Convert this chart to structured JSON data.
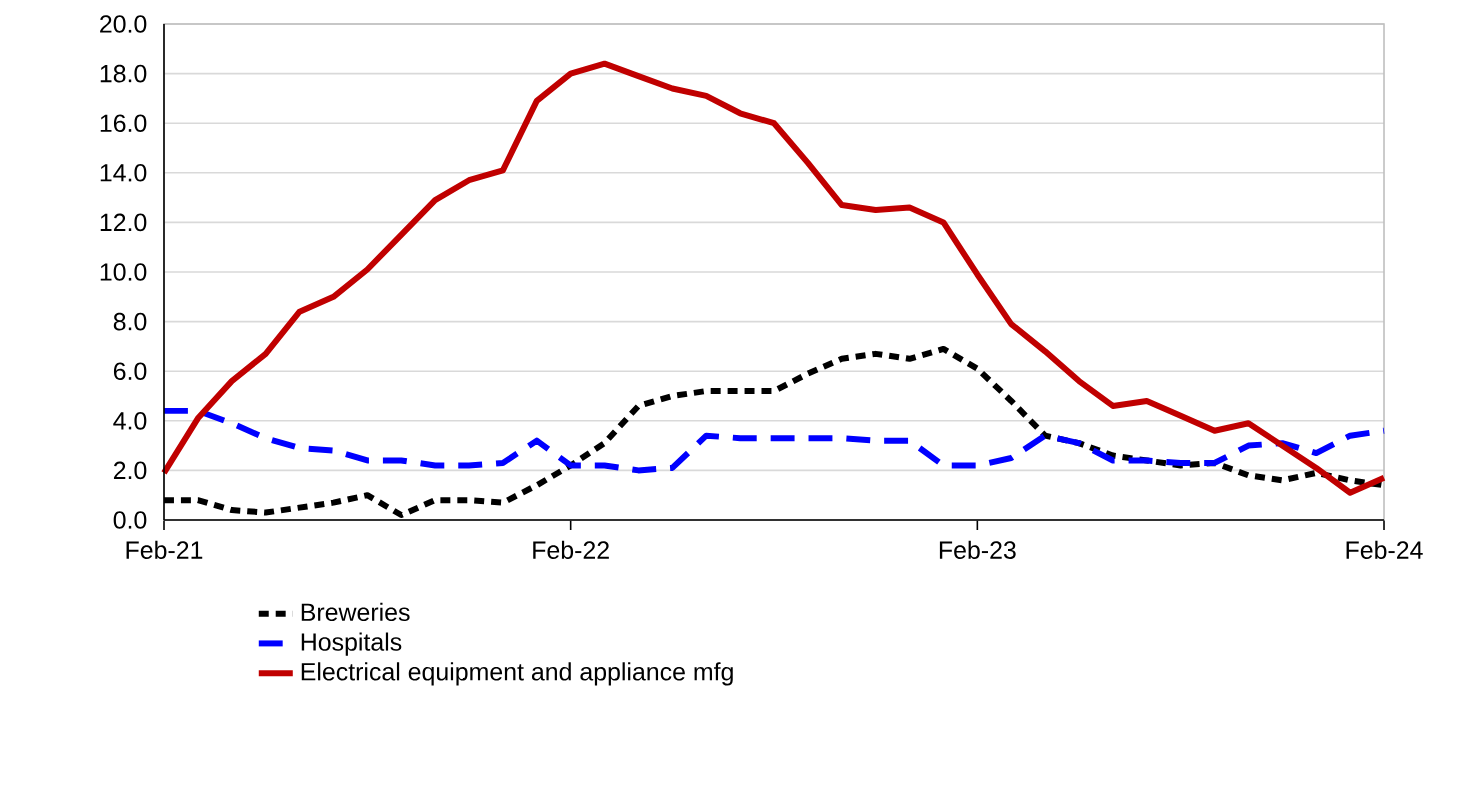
{
  "chart_data": {
    "type": "line",
    "categories": [
      "Feb-21",
      null,
      null,
      null,
      null,
      null,
      null,
      null,
      null,
      null,
      null,
      null,
      "Feb-22",
      null,
      null,
      null,
      null,
      null,
      null,
      null,
      null,
      null,
      null,
      null,
      "Feb-23",
      null,
      null,
      null,
      null,
      null,
      null,
      null,
      null,
      null,
      null,
      null,
      "Feb-24"
    ],
    "series": [
      {
        "name": "Breweries",
        "color": "#000000",
        "line_style": "dotted",
        "values": [
          0.8,
          0.8,
          0.4,
          0.3,
          0.5,
          0.7,
          1.0,
          0.2,
          0.8,
          0.8,
          0.7,
          1.4,
          2.2,
          3.1,
          4.6,
          5.0,
          5.2,
          5.2,
          5.2,
          5.9,
          6.5,
          6.7,
          6.5,
          6.9,
          6.1,
          4.8,
          3.4,
          3.1,
          2.6,
          2.4,
          2.2,
          2.3,
          1.8,
          1.6,
          1.9,
          1.6,
          1.4
        ]
      },
      {
        "name": "Hospitals",
        "color": "#0000ff",
        "line_style": "dashed",
        "values": [
          4.4,
          4.4,
          3.9,
          3.3,
          2.9,
          2.8,
          2.4,
          2.4,
          2.2,
          2.2,
          2.3,
          3.2,
          2.2,
          2.2,
          2.0,
          2.1,
          3.4,
          3.3,
          3.3,
          3.3,
          3.3,
          3.2,
          3.2,
          2.2,
          2.2,
          2.5,
          3.4,
          3.1,
          2.4,
          2.4,
          2.3,
          2.3,
          3.0,
          3.1,
          2.7,
          3.4,
          3.6
        ]
      },
      {
        "name": "Electrical equipment  and appliance mfg",
        "color": "#c00000",
        "line_style": "solid",
        "values": [
          1.9,
          4.1,
          5.6,
          6.7,
          8.4,
          9.0,
          10.1,
          11.5,
          12.9,
          13.7,
          14.1,
          16.9,
          18.0,
          18.4,
          17.9,
          17.4,
          17.1,
          16.4,
          16.0,
          14.4,
          12.7,
          12.5,
          12.6,
          12.0,
          9.9,
          7.9,
          6.8,
          5.6,
          4.6,
          4.8,
          4.2,
          3.6,
          3.9,
          3.0,
          2.1,
          1.1,
          1.7
        ]
      }
    ],
    "ylim": [
      0,
      20
    ],
    "yticks": [
      {
        "value": 0,
        "label": "0.0"
      },
      {
        "value": 2,
        "label": "2.0"
      },
      {
        "value": 4,
        "label": "4.0"
      },
      {
        "value": 6,
        "label": "6.0"
      },
      {
        "value": 8,
        "label": "8.0"
      },
      {
        "value": 10,
        "label": "10.0"
      },
      {
        "value": 12,
        "label": "12.0"
      },
      {
        "value": 14,
        "label": "14.0"
      },
      {
        "value": 16,
        "label": "16.0"
      },
      {
        "value": 18,
        "label": "18.0"
      },
      {
        "value": 20,
        "label": "20.0"
      }
    ],
    "grid": "y",
    "legend": "bottom"
  }
}
